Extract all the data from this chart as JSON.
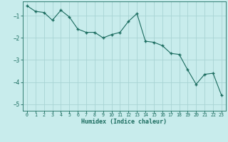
{
  "x": [
    0,
    1,
    2,
    3,
    4,
    5,
    6,
    7,
    8,
    9,
    10,
    11,
    12,
    13,
    14,
    15,
    16,
    17,
    18,
    19,
    20,
    21,
    22,
    23
  ],
  "y": [
    -0.55,
    -0.8,
    -0.85,
    -1.2,
    -0.75,
    -1.05,
    -1.6,
    -1.75,
    -1.75,
    -2.0,
    -1.85,
    -1.75,
    -1.25,
    -0.9,
    -2.15,
    -2.2,
    -2.35,
    -2.7,
    -2.75,
    -3.45,
    -4.1,
    -3.65,
    -3.6,
    -4.6
  ],
  "xlabel": "Humidex (Indice chaleur)",
  "xlim": [
    -0.5,
    23.5
  ],
  "ylim": [
    -5.3,
    -0.35
  ],
  "yticks": [
    -5,
    -4,
    -3,
    -2,
    -1
  ],
  "xticks": [
    0,
    1,
    2,
    3,
    4,
    5,
    6,
    7,
    8,
    9,
    10,
    11,
    12,
    13,
    14,
    15,
    16,
    17,
    18,
    19,
    20,
    21,
    22,
    23
  ],
  "line_color": "#1a6b5e",
  "marker_color": "#1a6b5e",
  "bg_color": "#c8ecec",
  "grid_color": "#a8d4d4",
  "label_color": "#1a6b5e",
  "tick_color": "#1a6b5e"
}
